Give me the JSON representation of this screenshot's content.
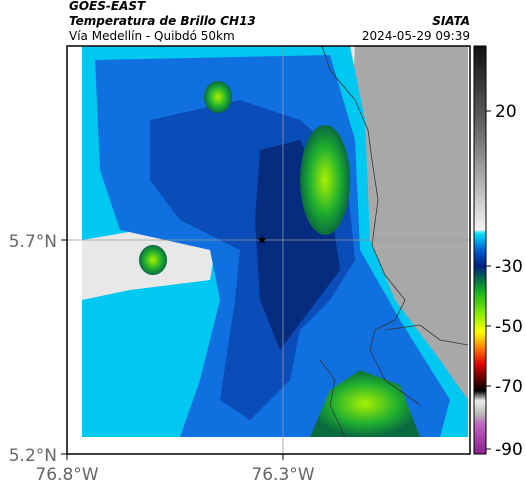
{
  "header": {
    "title": "GOES-EAST",
    "subtitle": "Temperatura de Brillo CH13",
    "source": "SIATA",
    "route": "Vía Medellín - Quibdó 50km",
    "datetime": "2024-05-29 09:39"
  },
  "axes": {
    "lat_labels": [
      "5.7°N",
      "5.2°N"
    ],
    "lon_labels": [
      "76.8°W",
      "76.3°W"
    ]
  },
  "colorbar": {
    "labels": [
      "20",
      "-30",
      "-50",
      "-70",
      "-90"
    ]
  }
}
